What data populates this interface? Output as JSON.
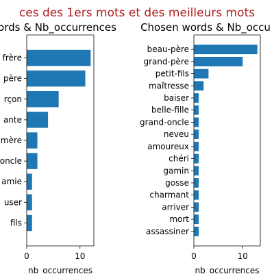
{
  "suptitle": "ces des 1ers mots et des meilleurs mots",
  "colors": {
    "bar": "#1f77b4",
    "suptitle": "#b22222",
    "axis": "#000000",
    "text": "#000000"
  },
  "chart_data": [
    {
      "type": "bar",
      "orientation": "horizontal",
      "title": "t words & Nb_occurrences",
      "xlabel": "nb_occurrences",
      "ylabel": "",
      "xlim": [
        0,
        12.6
      ],
      "xticks": [
        0,
        10
      ],
      "categories": [
        "frère",
        "père",
        "rçon",
        "ante",
        "mère",
        "oncle",
        "amie",
        "user",
        "fils"
      ],
      "values": [
        12,
        11,
        6,
        4,
        2,
        2,
        1,
        1,
        1
      ]
    },
    {
      "type": "bar",
      "orientation": "horizontal",
      "title": "Chosen words & Nb_occu",
      "xlabel": "nb_occurrences",
      "ylabel": "",
      "xlim": [
        0,
        13.6
      ],
      "xticks": [
        0,
        10
      ],
      "categories": [
        "beau-père",
        "grand-père",
        "petit-fils",
        "maîtresse",
        "baiser",
        "belle-fille",
        "grand-oncle",
        "neveu",
        "amoureux",
        "chéri",
        "gamin",
        "gosse",
        "charmant",
        "arriver",
        "mort",
        "assassiner"
      ],
      "values": [
        13,
        10,
        3,
        2,
        1,
        1,
        1,
        1,
        1,
        1,
        1,
        1,
        1,
        1,
        1,
        1
      ]
    }
  ]
}
